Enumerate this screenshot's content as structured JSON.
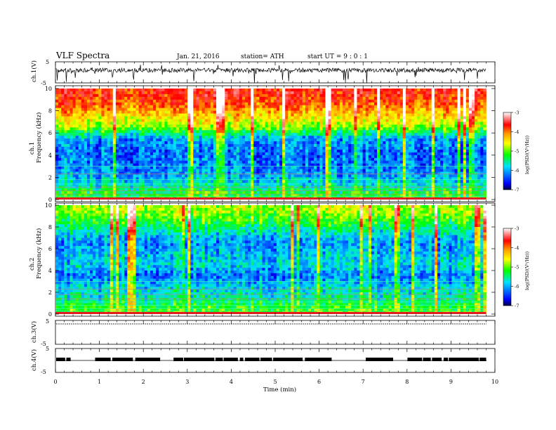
{
  "header": {
    "title": "VLF  Spectra",
    "date": "Jan. 21, 2016",
    "station": "station= ATH",
    "start": "start  UT  =   9  : 0  : 1"
  },
  "panels": {
    "ch1_v": {
      "ylabel": "ch.1(V)",
      "ymax": "5",
      "ymin": "-5"
    },
    "ch1_spec": {
      "ylabel_line1": "ch.1",
      "ylabel_line2": "Frequency  (kHz)"
    },
    "ch2_spec": {
      "ylabel_line1": "ch.2",
      "ylabel_line2": "Frequency  (kHz)"
    },
    "ch3_v": {
      "ylabel": "ch.3(V)",
      "ymax": "5",
      "ymin": "-5"
    },
    "ch4_v": {
      "ylabel": "ch.4(V)",
      "ymax": "5",
      "ymin": "-5"
    }
  },
  "colorbar": {
    "label": "log(PSD/(V²/Hz))",
    "ticks": [
      "-3",
      "-4",
      "-5",
      "-6",
      "-7"
    ],
    "colors": [
      "#ffffff",
      "#ff0000",
      "#ffa000",
      "#ffff00",
      "#00ff00",
      "#00e0ff",
      "#0000ff",
      "#000040"
    ]
  },
  "chart_data": {
    "type": "heatmap",
    "title": "VLF  Spectra",
    "xlabel": "Time  (min)",
    "xlim": [
      0,
      10
    ],
    "x_ticks": [
      "0",
      "1",
      "2",
      "3",
      "4",
      "5",
      "6",
      "7",
      "8",
      "9",
      "10"
    ],
    "y_ticks_freq": [
      "0",
      "2",
      "4",
      "6",
      "8",
      "10"
    ],
    "ylim_freq_khz": [
      0,
      10
    ],
    "ylim_voltage": [
      -5,
      5
    ],
    "data_end_min": 9.8,
    "zlim": [
      -7,
      -3
    ],
    "spectrogram_ch1_freq_khz": [
      0.5,
      1.5,
      2.5,
      3.5,
      4.5,
      5.5,
      6.5,
      7.5,
      8.5,
      9.5
    ],
    "spectrogram_ch1_log_psd": [
      -5.6,
      -6.2,
      -6.5,
      -6.6,
      -6.6,
      -6.4,
      -5.3,
      -4.8,
      -4.3,
      -4.0
    ],
    "spectrogram_ch2_freq_khz": [
      0.5,
      1.5,
      2.5,
      3.5,
      4.5,
      5.5,
      6.5,
      7.5,
      8.5,
      9.5
    ],
    "spectrogram_ch2_log_psd": [
      -5.5,
      -6.0,
      -6.2,
      -6.6,
      -6.2,
      -6.3,
      -6.5,
      -6.1,
      -5.6,
      -5.2
    ],
    "ch3_voltage_level": 0,
    "ch4_voltage_level": 0
  }
}
